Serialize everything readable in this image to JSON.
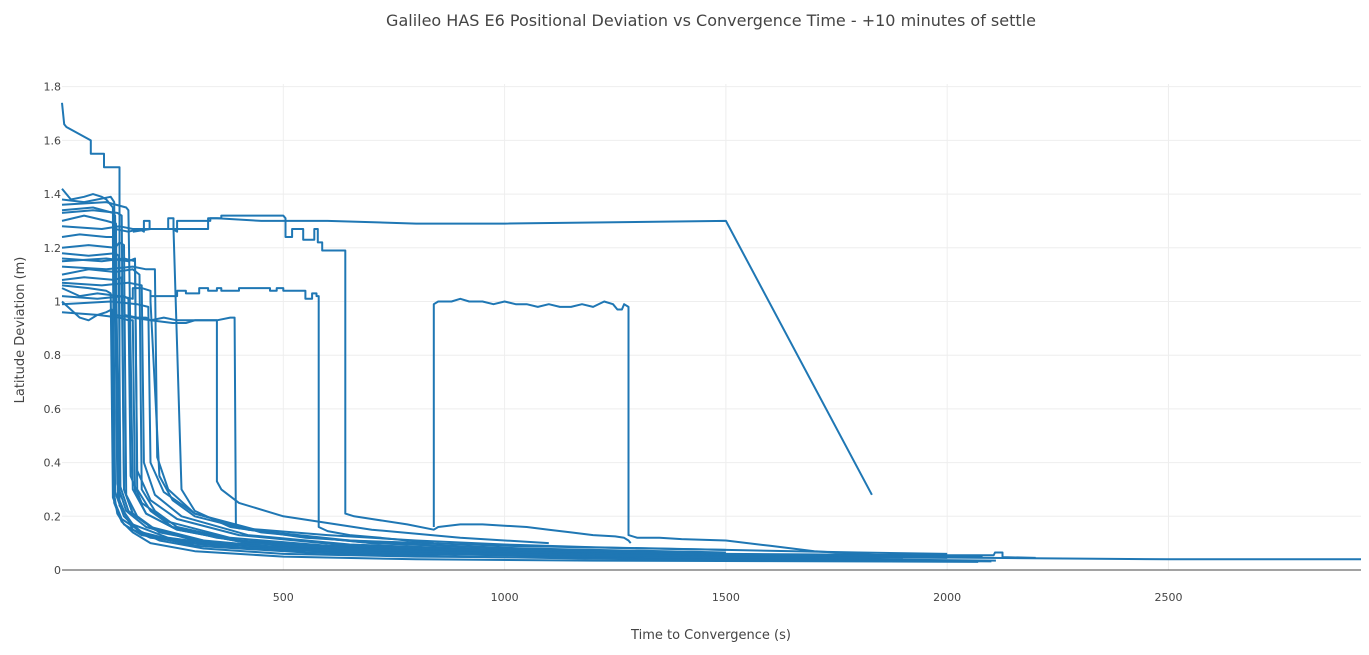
{
  "chart_data": {
    "type": "line",
    "title": "Galileo HAS E6 Positional Deviation vs Convergence Time - +10 minutes of settle",
    "xlabel": "Time to Convergence (s)",
    "ylabel": "Latitude Deviation (m)",
    "xlim": [
      0,
      2935
    ],
    "ylim": [
      0,
      1.81
    ],
    "xticks": [
      500,
      1000,
      1500,
      2000,
      2500
    ],
    "xtick_labels": [
      "500",
      "1000",
      "1500",
      "2000",
      "2500"
    ],
    "yticks": [
      0,
      0.2,
      0.4,
      0.6,
      0.8,
      1,
      1.2,
      1.4,
      1.6,
      1.8
    ],
    "ytick_labels": [
      "0",
      "0.2",
      "0.4",
      "0.6",
      "0.8",
      "1",
      "1.2",
      "1.4",
      "1.6",
      "1.8"
    ],
    "grid": true,
    "legend": "none",
    "line_color": "#1f77b4",
    "series": [
      {
        "x": [
          0,
          5,
          10,
          65,
          65,
          95,
          95,
          130,
          130,
          145,
          160,
          200,
          300,
          500,
          800,
          1200,
          1700,
          2100,
          2500,
          2935
        ],
        "y": [
          1.74,
          1.66,
          1.65,
          1.6,
          1.55,
          1.55,
          1.5,
          1.5,
          0.26,
          0.2,
          0.15,
          0.12,
          0.1,
          0.085,
          0.07,
          0.06,
          0.05,
          0.045,
          0.04,
          0.04
        ]
      },
      {
        "x": [
          0,
          20,
          50,
          70,
          90,
          100,
          110,
          115,
          118,
          125,
          140,
          180,
          300,
          600,
          1000,
          1500,
          2000,
          2105,
          2108,
          2125,
          2125,
          2200
        ],
        "y": [
          1.42,
          1.38,
          1.39,
          1.4,
          1.39,
          1.38,
          1.36,
          1.35,
          0.28,
          0.21,
          0.17,
          0.13,
          0.1,
          0.08,
          0.068,
          0.06,
          0.055,
          0.055,
          0.065,
          0.065,
          0.048,
          0.045
        ]
      },
      {
        "x": [
          0,
          40,
          60,
          80,
          100,
          112,
          118,
          135,
          160,
          200,
          300,
          500,
          800,
          1200,
          1600,
          2000,
          2070
        ],
        "y": [
          1.0,
          0.94,
          0.93,
          0.95,
          0.96,
          0.97,
          0.25,
          0.18,
          0.14,
          0.1,
          0.07,
          0.05,
          0.04,
          0.035,
          0.033,
          0.031,
          0.03
        ]
      },
      {
        "x": [
          0,
          50,
          100,
          122,
          126,
          140,
          170,
          220,
          320,
          500,
          800,
          1200,
          1800,
          2110
        ],
        "y": [
          1.3,
          1.32,
          1.3,
          1.29,
          0.27,
          0.2,
          0.15,
          0.11,
          0.08,
          0.06,
          0.05,
          0.045,
          0.04,
          0.035
        ]
      },
      {
        "x": [
          0,
          60,
          120,
          130,
          140,
          145,
          170,
          220,
          350,
          600,
          1000,
          1500,
          2000
        ],
        "y": [
          1.2,
          1.21,
          1.2,
          1.22,
          1.21,
          0.28,
          0.2,
          0.14,
          0.1,
          0.07,
          0.06,
          0.05,
          0.045
        ]
      },
      {
        "x": [
          0,
          60,
          120,
          160,
          175,
          180,
          210,
          260,
          400,
          700,
          1100,
          1600,
          2080
        ],
        "y": [
          1.1,
          1.12,
          1.11,
          1.12,
          1.1,
          0.3,
          0.22,
          0.16,
          0.11,
          0.08,
          0.065,
          0.055,
          0.05
        ]
      },
      {
        "x": [
          0,
          40,
          80,
          130,
          160,
          160,
          180,
          200,
          200,
          220,
          250,
          300,
          420,
          650,
          1000,
          1500
        ],
        "y": [
          1.05,
          1.02,
          1.03,
          1.02,
          1.01,
          1.05,
          1.05,
          1.04,
          1.0,
          0.35,
          0.26,
          0.2,
          0.15,
          0.11,
          0.09,
          0.075
        ]
      },
      {
        "x": [
          0,
          90,
          130,
          160,
          240,
          240,
          252,
          252,
          270,
          300,
          380,
          550,
          850,
          1200,
          1500
        ],
        "y": [
          1.28,
          1.27,
          1.28,
          1.27,
          1.27,
          1.31,
          1.31,
          1.27,
          0.3,
          0.22,
          0.16,
          0.12,
          0.09,
          0.07,
          0.06
        ]
      },
      {
        "x": [
          0,
          100,
          150,
          165,
          170,
          200,
          250,
          350,
          500,
          800,
          1200,
          1700
        ],
        "y": [
          1.15,
          1.16,
          1.15,
          1.16,
          0.3,
          0.22,
          0.16,
          0.12,
          0.09,
          0.07,
          0.06,
          0.05
        ]
      },
      {
        "x": [
          120,
          150,
          175,
          185,
          185,
          198,
          198,
          300,
          330,
          330,
          350,
          450,
          600,
          800,
          1000,
          1500,
          1830
        ],
        "y": [
          1.27,
          1.26,
          1.27,
          1.26,
          1.3,
          1.3,
          1.27,
          1.27,
          1.27,
          1.31,
          1.31,
          1.3,
          1.3,
          1.29,
          1.29,
          1.3,
          0.28
        ]
      },
      {
        "x": [
          0,
          80,
          130,
          150,
          160,
          165,
          190,
          260,
          420,
          700,
          1100,
          1500
        ],
        "y": [
          0.96,
          0.95,
          0.94,
          0.93,
          0.93,
          0.29,
          0.21,
          0.15,
          0.1,
          0.08,
          0.065,
          0.055
        ]
      },
      {
        "x": [
          160,
          200,
          250,
          260,
          260,
          335,
          335,
          360,
          360,
          370,
          390,
          500,
          505,
          505,
          520,
          520,
          545,
          545,
          570,
          570,
          578,
          578,
          588,
          588,
          640,
          640,
          660,
          700,
          780,
          840,
          840,
          850,
          900,
          950,
          1000,
          1050,
          1100,
          1150,
          1200,
          1250,
          1270,
          1280,
          1285
        ],
        "y": [
          1.26,
          1.27,
          1.27,
          1.26,
          1.3,
          1.3,
          1.31,
          1.31,
          1.32,
          1.32,
          1.32,
          1.32,
          1.31,
          1.24,
          1.24,
          1.27,
          1.27,
          1.23,
          1.23,
          1.27,
          1.27,
          1.22,
          1.22,
          1.19,
          1.19,
          0.21,
          0.2,
          0.19,
          0.17,
          0.15,
          0.15,
          0.16,
          0.17,
          0.17,
          0.165,
          0.16,
          0.15,
          0.14,
          0.13,
          0.125,
          0.12,
          0.11,
          0.1
        ]
      },
      {
        "x": [
          200,
          260,
          260,
          280,
          280,
          310,
          310,
          330,
          330,
          350,
          350,
          360,
          360,
          400,
          400,
          470,
          470,
          485,
          485,
          500,
          500,
          550,
          550,
          565,
          565,
          575,
          575,
          580,
          580,
          600,
          650,
          720,
          780,
          840
        ],
        "y": [
          1.02,
          1.02,
          1.04,
          1.04,
          1.03,
          1.03,
          1.05,
          1.05,
          1.04,
          1.04,
          1.05,
          1.05,
          1.04,
          1.04,
          1.05,
          1.05,
          1.04,
          1.04,
          1.05,
          1.05,
          1.04,
          1.04,
          1.01,
          1.01,
          1.03,
          1.03,
          1.02,
          1.02,
          0.16,
          0.145,
          0.13,
          0.12,
          0.11,
          0.1
        ]
      },
      {
        "x": [
          840,
          840,
          850,
          880,
          900,
          920,
          950,
          975,
          1000,
          1025,
          1050,
          1075,
          1100,
          1125,
          1150,
          1175,
          1200,
          1225,
          1245,
          1255,
          1265,
          1270,
          1280,
          1280,
          1300,
          1350,
          1400,
          1500,
          1600,
          1700,
          1800,
          1850
        ],
        "y": [
          0.16,
          0.99,
          1.0,
          1.0,
          1.01,
          1.0,
          1.0,
          0.99,
          1.0,
          0.99,
          0.99,
          0.98,
          0.99,
          0.98,
          0.98,
          0.99,
          0.98,
          1.0,
          0.99,
          0.97,
          0.97,
          0.99,
          0.98,
          0.13,
          0.12,
          0.12,
          0.115,
          0.11,
          0.09,
          0.07,
          0.06,
          0.055
        ]
      },
      {
        "x": [
          120,
          200,
          250,
          280,
          280,
          300,
          350,
          380,
          390,
          393,
          400,
          450,
          600,
          800,
          1000,
          1200,
          1500,
          1800,
          2000
        ],
        "y": [
          0.95,
          0.93,
          0.92,
          0.92,
          0.92,
          0.93,
          0.93,
          0.94,
          0.94,
          0.16,
          0.155,
          0.15,
          0.13,
          0.11,
          0.095,
          0.085,
          0.075,
          0.065,
          0.06
        ]
      },
      {
        "x": [
          140,
          170,
          190,
          200,
          230,
          230,
          260,
          350,
          350,
          360,
          400,
          500,
          700,
          900,
          1100
        ],
        "y": [
          0.95,
          0.94,
          0.94,
          0.93,
          0.94,
          0.94,
          0.93,
          0.93,
          0.33,
          0.3,
          0.25,
          0.2,
          0.15,
          0.12,
          0.1
        ]
      },
      {
        "x": [
          0,
          50,
          110,
          118,
          125,
          145,
          190,
          300,
          500,
          850,
          1300,
          1900
        ],
        "y": [
          1.38,
          1.37,
          1.39,
          1.37,
          0.32,
          0.22,
          0.16,
          0.11,
          0.08,
          0.065,
          0.055,
          0.045
        ]
      },
      {
        "x": [
          0,
          50,
          120,
          135,
          140,
          160,
          210,
          330,
          550,
          900,
          1300,
          1800
        ],
        "y": [
          1.08,
          1.09,
          1.08,
          1.09,
          0.3,
          0.21,
          0.15,
          0.1,
          0.075,
          0.06,
          0.05,
          0.045
        ]
      },
      {
        "x": [
          0,
          40,
          100,
          115,
          120,
          140,
          180,
          280,
          480,
          800,
          1200,
          1600
        ],
        "y": [
          1.24,
          1.25,
          1.24,
          1.24,
          0.29,
          0.2,
          0.14,
          0.1,
          0.075,
          0.06,
          0.05,
          0.045
        ]
      },
      {
        "x": [
          0,
          60,
          120,
          128,
          132,
          150,
          200,
          320,
          520,
          850,
          1200,
          1700
        ],
        "y": [
          1.18,
          1.17,
          1.18,
          1.17,
          0.31,
          0.22,
          0.16,
          0.11,
          0.08,
          0.062,
          0.052,
          0.046
        ]
      },
      {
        "x": [
          0,
          80,
          140,
          150,
          155,
          180,
          240,
          380,
          600,
          950,
          1300,
          1700
        ],
        "y": [
          1.02,
          1.01,
          1.02,
          1.01,
          0.35,
          0.25,
          0.18,
          0.12,
          0.09,
          0.07,
          0.058,
          0.05
        ]
      },
      {
        "x": [
          0,
          70,
          125,
          135,
          140,
          160,
          210,
          330,
          540,
          880,
          1250,
          1650
        ],
        "y": [
          1.33,
          1.34,
          1.33,
          1.32,
          0.3,
          0.21,
          0.15,
          0.105,
          0.078,
          0.062,
          0.052,
          0.046
        ]
      },
      {
        "x": [
          0,
          90,
          150,
          180,
          185,
          210,
          270,
          420,
          650,
          1000,
          1400,
          1800
        ],
        "y": [
          1.07,
          1.06,
          1.07,
          1.06,
          0.4,
          0.28,
          0.2,
          0.13,
          0.095,
          0.075,
          0.062,
          0.053
        ]
      },
      {
        "x": [
          0,
          100,
          160,
          190,
          210,
          215,
          240,
          300,
          460,
          700,
          1050,
          1500
        ],
        "y": [
          1.13,
          1.12,
          1.13,
          1.12,
          1.12,
          0.42,
          0.3,
          0.21,
          0.14,
          0.1,
          0.08,
          0.065
        ]
      },
      {
        "x": [
          0,
          70,
          115,
          120,
          130,
          160,
          240,
          400,
          700,
          1100,
          1500
        ],
        "y": [
          1.34,
          1.35,
          1.33,
          1.32,
          0.24,
          0.17,
          0.12,
          0.085,
          0.065,
          0.052,
          0.045
        ]
      },
      {
        "x": [
          0,
          100,
          145,
          150,
          160,
          190,
          260,
          420,
          700,
          1000,
          1400
        ],
        "y": [
          1.36,
          1.37,
          1.35,
          1.34,
          0.3,
          0.21,
          0.15,
          0.1,
          0.075,
          0.06,
          0.052
        ]
      },
      {
        "x": [
          0,
          60,
          100,
          110,
          115,
          135,
          190,
          300,
          550,
          900,
          1300,
          1800,
          2100
        ],
        "y": [
          1.06,
          1.05,
          1.04,
          1.03,
          0.27,
          0.19,
          0.13,
          0.09,
          0.065,
          0.05,
          0.04,
          0.035,
          0.032
        ]
      },
      {
        "x": [
          0,
          90,
          140,
          165,
          170,
          200,
          260,
          400,
          650,
          1000
        ],
        "y": [
          1.16,
          1.15,
          1.16,
          1.15,
          0.37,
          0.26,
          0.19,
          0.13,
          0.09,
          0.07
        ]
      },
      {
        "x": [
          0,
          110,
          170,
          195,
          200,
          230,
          300,
          450,
          700,
          1050
        ],
        "y": [
          0.99,
          1.0,
          0.99,
          0.98,
          0.4,
          0.29,
          0.21,
          0.14,
          0.1,
          0.078
        ]
      }
    ]
  }
}
